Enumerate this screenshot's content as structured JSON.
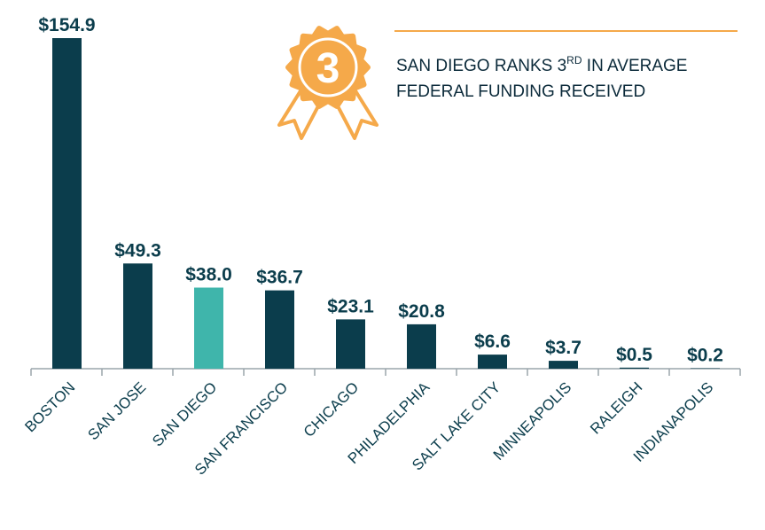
{
  "chart_data": {
    "type": "bar",
    "categories": [
      "BOSTON",
      "SAN JOSE",
      "SAN DIEGO",
      "SAN FRANCISCO",
      "CHICAGO",
      "PHILADELPHIA",
      "SALT LAKE CITY",
      "MINNEAPOLIS",
      "RALEIGH",
      "INDIANAPOLIS"
    ],
    "values": [
      154.9,
      49.3,
      38.0,
      36.7,
      23.1,
      20.8,
      6.6,
      3.7,
      0.5,
      0.2
    ],
    "value_labels": [
      "$154.9",
      "$49.3",
      "$38.0",
      "$36.7",
      "$23.1",
      "$20.8",
      "$6.6",
      "$3.7",
      "$0.5",
      "$0.2"
    ],
    "colors": [
      "#0b3d4c",
      "#0b3d4c",
      "#3fb5ab",
      "#0b3d4c",
      "#0b3d4c",
      "#0b3d4c",
      "#0b3d4c",
      "#0b3d4c",
      "#0b3d4c",
      "#0b3d4c"
    ],
    "annotation": {
      "badge": "3",
      "line1_a": "SAN DIEGO RANKS 3",
      "line1_sup": "RD",
      "line1_b": " IN AVERAGE",
      "line2": "FEDERAL FUNDING RECEIVED",
      "color": "#f5a94a"
    }
  }
}
